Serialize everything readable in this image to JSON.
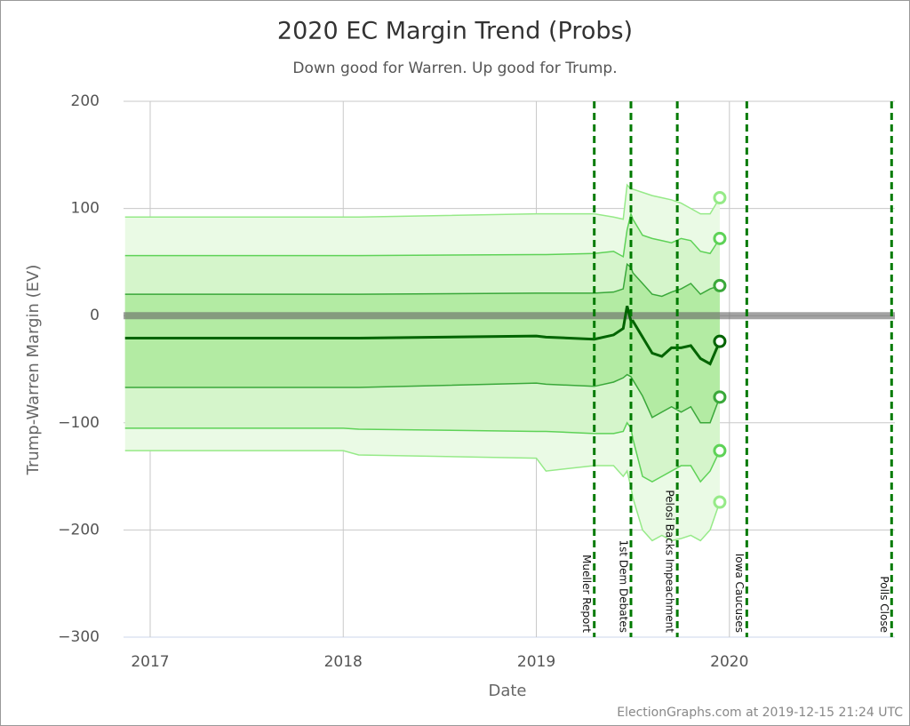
{
  "chart_data": {
    "type": "band-line",
    "title": "2020 EC Margin Trend (Probs)",
    "subtitle": "Down good for Warren. Up good for Trump.",
    "y_label": "Trump-Warren Margin (EV)",
    "x_label": "Date",
    "credit": "ElectionGraphs.com at 2019-12-15 21:24 UTC",
    "xlim": [
      2016.862,
      2020.857
    ],
    "xticks": [
      2017,
      2018,
      2019,
      2020
    ],
    "ylim": [
      -300,
      200
    ],
    "yticks": [
      {
        "value": -300,
        "label": "−300"
      },
      {
        "value": -200,
        "label": "−200"
      },
      {
        "value": -100,
        "label": "−100"
      },
      0,
      100,
      200
    ],
    "grid": true,
    "reference_y": 0,
    "x": [
      2016.87,
      2017.5,
      2018.0,
      2018.08,
      2019.0,
      2019.05,
      2019.3,
      2019.4,
      2019.45,
      2019.47,
      2019.49,
      2019.5,
      2019.55,
      2019.6,
      2019.65,
      2019.7,
      2019.75,
      2019.8,
      2019.85,
      2019.9,
      2019.95
    ],
    "bands": [
      {
        "fill": "#eafaE5",
        "upper": {
          "color": "#96ea88",
          "values": [
            92,
            92,
            92,
            92,
            95,
            95,
            95,
            92,
            90,
            122,
            118,
            118,
            115,
            112,
            110,
            108,
            105,
            100,
            95,
            95,
            110
          ]
        },
        "lower": {
          "color": "#96ea88",
          "values": [
            -126,
            -126,
            -126,
            -130,
            -133,
            -145,
            -140,
            -140,
            -150,
            -145,
            -160,
            -170,
            -200,
            -210,
            -205,
            -210,
            -208,
            -205,
            -210,
            -200,
            -174
          ]
        }
      },
      {
        "fill": "#d5f5cb",
        "upper": {
          "color": "#5ed257",
          "values": [
            56,
            56,
            56,
            56,
            57,
            57,
            58,
            60,
            55,
            80,
            95,
            90,
            75,
            72,
            70,
            68,
            72,
            70,
            60,
            58,
            72
          ]
        },
        "lower": {
          "color": "#5ed257",
          "values": [
            -105,
            -105,
            -105,
            -106,
            -108,
            -108,
            -110,
            -110,
            -108,
            -100,
            -105,
            -115,
            -150,
            -155,
            -150,
            -145,
            -140,
            -140,
            -155,
            -145,
            -126
          ]
        }
      },
      {
        "fill": "#b3eba3",
        "upper": {
          "color": "#3aa83a",
          "values": [
            20,
            20,
            20,
            20,
            21,
            21,
            21,
            22,
            25,
            48,
            45,
            40,
            30,
            20,
            18,
            22,
            25,
            30,
            20,
            25,
            28
          ]
        },
        "lower": {
          "color": "#3aa83a",
          "values": [
            -67,
            -67,
            -67,
            -67,
            -63,
            -64,
            -66,
            -62,
            -58,
            -55,
            -57,
            -60,
            -75,
            -95,
            -90,
            -85,
            -90,
            -85,
            -100,
            -100,
            -76
          ]
        }
      }
    ],
    "median": {
      "color": "#006400",
      "values": [
        -21,
        -21,
        -21,
        -21,
        -19,
        -20,
        -22,
        -18,
        -12,
        9,
        -5,
        -5,
        -20,
        -35,
        -38,
        -30,
        -30,
        -28,
        -40,
        -45,
        -24
      ]
    },
    "end_markers": true,
    "event_color": "#007a00",
    "events": [
      {
        "x": 2019.3,
        "label": "Mueller Report"
      },
      {
        "x": 2019.49,
        "label": "1st Dem Debates"
      },
      {
        "x": 2019.73,
        "label": "Pelosi Backs Impeachment"
      },
      {
        "x": 2020.09,
        "label": "Iowa Caucuses"
      },
      {
        "x": 2020.84,
        "label": "Polls Close"
      }
    ]
  }
}
